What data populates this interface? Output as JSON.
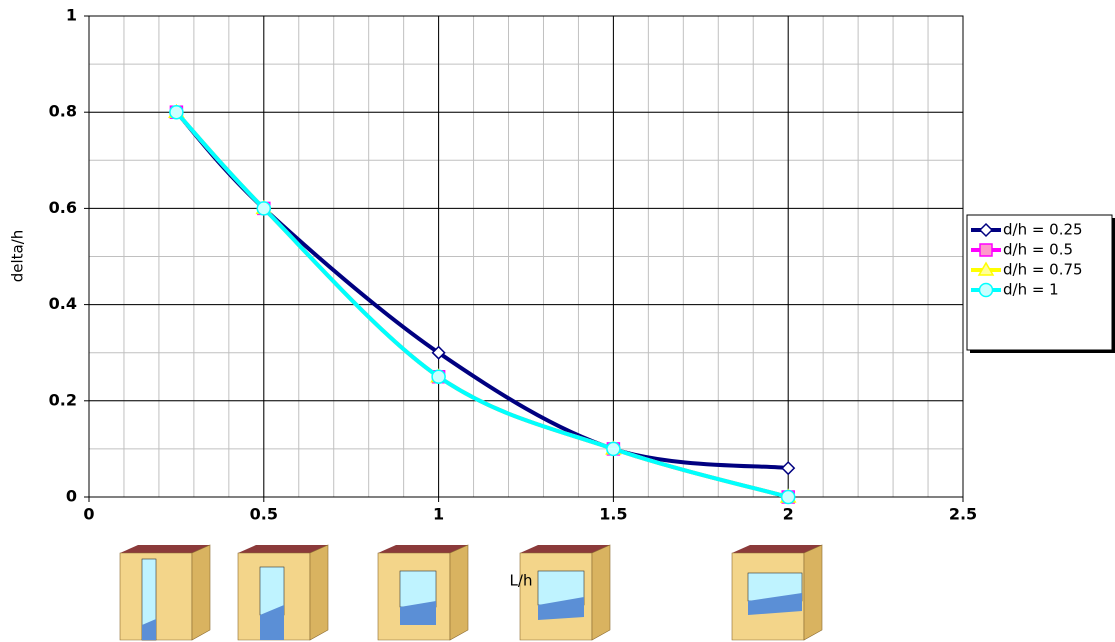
{
  "chart_data": {
    "type": "line",
    "x_label": "L/h",
    "y_label": "delta/h",
    "x": [
      0.25,
      0.5,
      1,
      1.5,
      2
    ],
    "series": [
      {
        "name": "d/h = 0.25",
        "color": "#000080",
        "marker": "diamond",
        "marker_fill": "#ffffff",
        "values": [
          0.8,
          0.6,
          0.3,
          0.1,
          0.06
        ]
      },
      {
        "name": "d/h = 0.5",
        "color": "#ff00ff",
        "marker": "square",
        "marker_fill": "#ff99cc",
        "values": [
          0.8,
          0.6,
          0.25,
          0.1,
          0
        ]
      },
      {
        "name": "d/h = 0.75",
        "color": "#ffff00",
        "marker": "triangle",
        "marker_fill": "#ffff99",
        "values": [
          0.8,
          0.6,
          0.25,
          0.1,
          0
        ]
      },
      {
        "name": "d/h = 1",
        "color": "#00ffff",
        "marker": "circle",
        "marker_fill": "#ccffff",
        "values": [
          0.8,
          0.6,
          0.25,
          0.1,
          0
        ]
      }
    ],
    "xlim": [
      0,
      2.5
    ],
    "xticks": [
      0,
      0.5,
      1,
      1.5,
      2,
      2.5
    ],
    "ylim": [
      0,
      1
    ],
    "yticks": [
      0,
      0.2,
      0.4,
      0.6,
      0.8,
      1
    ],
    "grid": true,
    "minor_grid": [
      0.1,
      0.1
    ],
    "smooth": true,
    "legend": "right"
  }
}
